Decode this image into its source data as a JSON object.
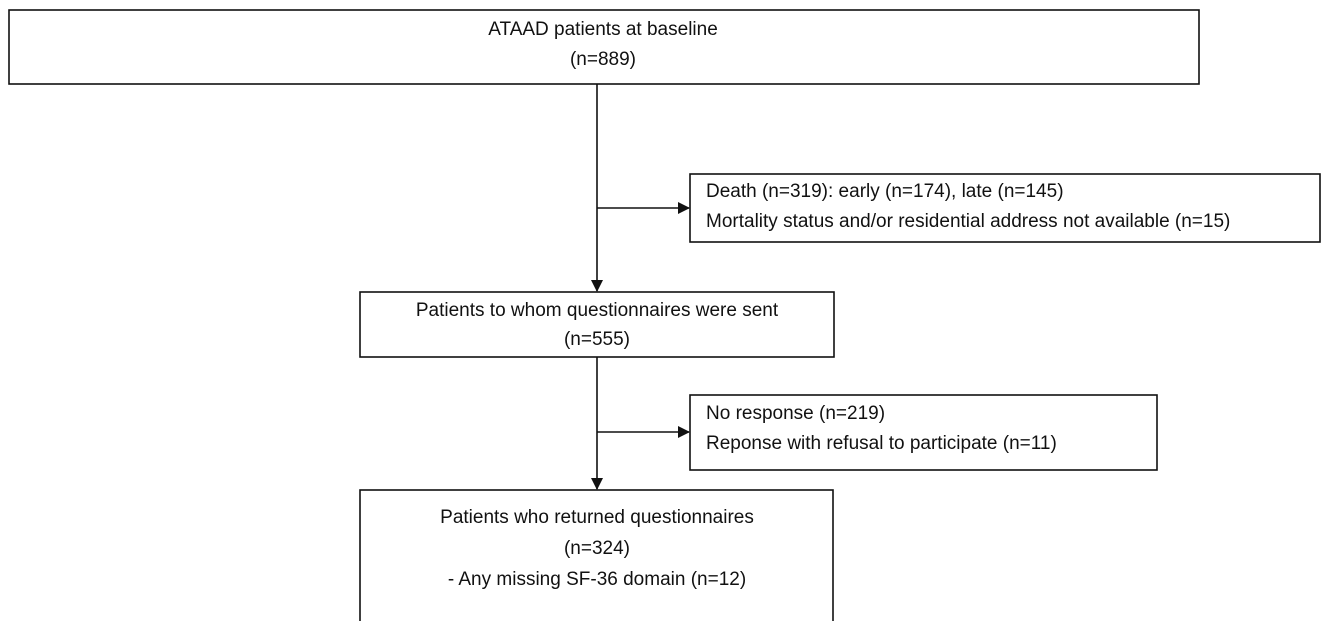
{
  "nodes": [
    {
      "lines": [
        "ATAAD patients at baseline",
        "(n=889)"
      ]
    },
    {
      "lines": [
        "Death (n=319): early (n=174), late (n=145)",
        "Mortality status and/or residential address not available (n=15)"
      ]
    },
    {
      "lines": [
        "Patients to whom questionnaires were sent",
        "(n=555)"
      ]
    },
    {
      "lines": [
        "No response (n=219)",
        "Reponse with refusal to participate (n=11)"
      ]
    },
    {
      "lines": [
        "Patients who returned questionnaires",
        "(n=324)",
        "- Any missing SF-36 domain (n=12)"
      ]
    }
  ]
}
